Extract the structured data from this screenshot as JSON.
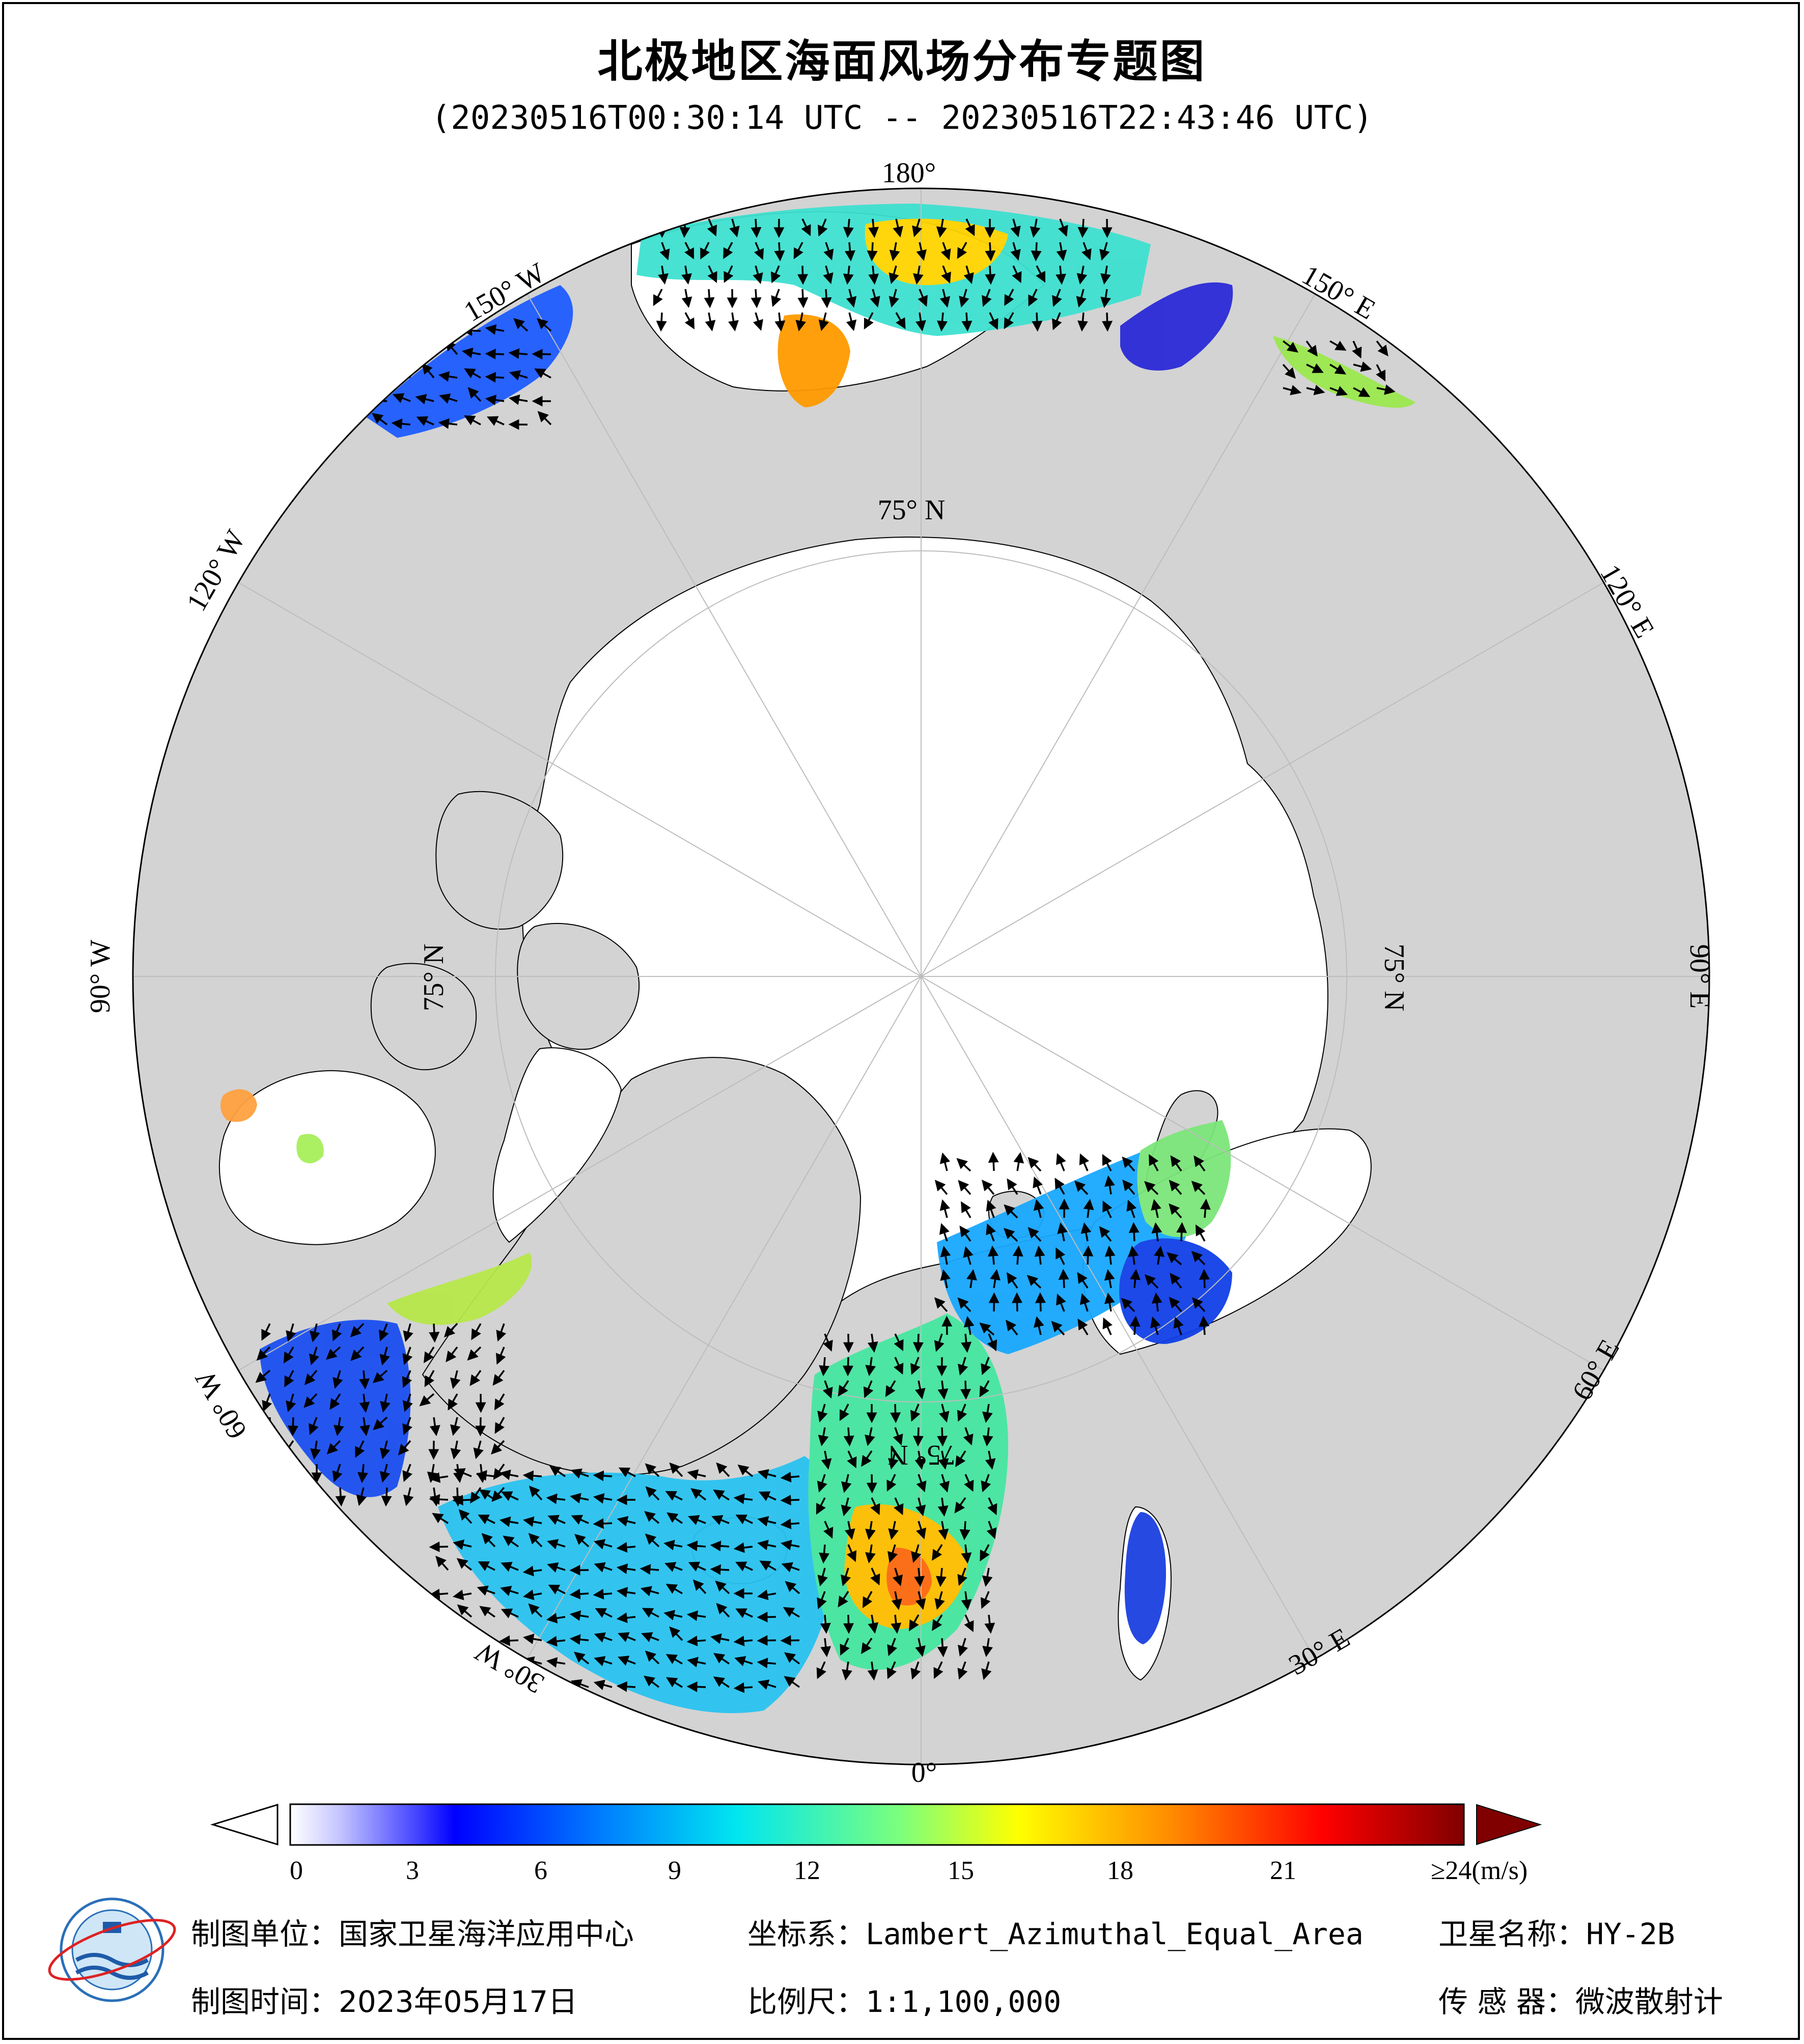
{
  "title": "北极地区海面风场分布专题图",
  "time_range": "(20230516T00:30:14 UTC -- 20230516T22:43:46 UTC)",
  "map": {
    "projection": "Lambert_Azimuthal_Equal_Area",
    "longitude_labels": {
      "lon_180": "180°",
      "lon_150W": "150° W",
      "lon_120W": "120° W",
      "lon_90W": "90° W",
      "lon_60W": "60° W",
      "lon_30W": "30° W",
      "lon_0": "0°",
      "lon_30E": "30° E",
      "lon_60E": "60° E",
      "lon_90E": "90° E",
      "lon_120E": "120° E",
      "lon_150E": "150° E"
    },
    "latitude_labels": {
      "lat_top": "75° N",
      "lat_left": "75° N",
      "lat_right": "75° N",
      "lat_bottom": "75° N"
    },
    "colors": {
      "ocean_ice": "#ffffff",
      "land": "#d3d3d3",
      "graticule": "#bdbdbd",
      "arrow": "#000000"
    }
  },
  "colorbar": {
    "ticks": [
      "0",
      "3",
      "6",
      "9",
      "12",
      "15",
      "18",
      "21",
      "≥24(m/s)"
    ],
    "min": 0,
    "max": 24,
    "unit": "m/s",
    "colors": [
      "#ffffff",
      "#c8c8ff",
      "#0000ff",
      "#0078ff",
      "#00e6f0",
      "#7cff7c",
      "#ffff00",
      "#ff8c00",
      "#ff0000",
      "#800000"
    ]
  },
  "footer": {
    "unit_label": "制图单位：",
    "unit_value": "国家卫星海洋应用中心",
    "coord_label": "坐标系：",
    "coord_value": "Lambert_Azimuthal_Equal_Area",
    "satellite_label": "卫星名称：",
    "satellite_value": "HY-2B",
    "time_label": "制图时间：",
    "time_value": "2023年05月17日",
    "scale_label": "比例尺：",
    "scale_value": "1:1,100,000",
    "sensor_label": "传 感 器：",
    "sensor_value": "微波散射计"
  },
  "wind_regions": [
    {
      "name": "bering-strait",
      "speed": 12
    },
    {
      "name": "bering-center",
      "speed": 18
    },
    {
      "name": "gulf-of-alaska",
      "speed": 6
    },
    {
      "name": "okhotsk-sea",
      "speed": 4
    },
    {
      "name": "kamchatka-coast",
      "speed": 14
    },
    {
      "name": "labrador-sea",
      "speed": 5
    },
    {
      "name": "davis-strait",
      "speed": 13
    },
    {
      "name": "greenland-sea",
      "speed": 12
    },
    {
      "name": "barents-sea",
      "speed": 6
    },
    {
      "name": "kara-sea",
      "speed": 13
    },
    {
      "name": "norwegian-sea",
      "speed": 17
    },
    {
      "name": "north-atlantic",
      "speed": 9
    },
    {
      "name": "baltic-sea",
      "speed": 4
    },
    {
      "name": "hudson-bay",
      "speed": 14
    }
  ]
}
